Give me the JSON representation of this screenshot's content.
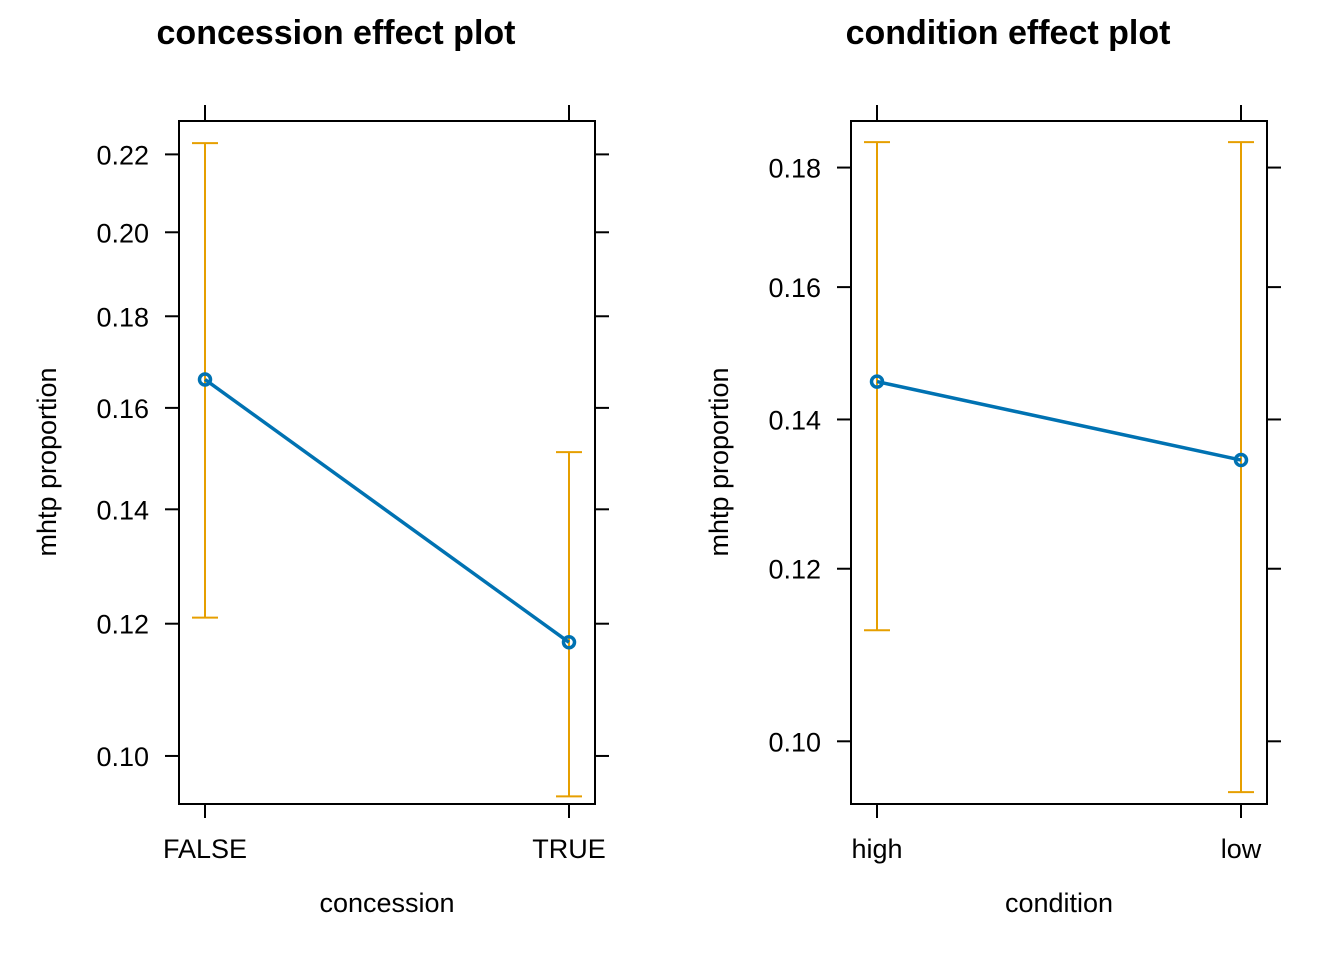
{
  "chart_data": [
    {
      "type": "line",
      "title": "concession effect plot",
      "xlabel": "concession",
      "ylabel": "mhtp proportion",
      "y_scale": "logit",
      "ylim": [
        0.0935,
        0.229
      ],
      "categories": [
        "FALSE",
        "TRUE"
      ],
      "yticks": [
        "0.10",
        "0.12",
        "0.14",
        "0.16",
        "0.18",
        "0.20",
        "0.22"
      ],
      "series": [
        {
          "values": [
            0.166,
            0.117
          ],
          "lower": [
            0.121,
            0.0945
          ],
          "upper": [
            0.223,
            0.151
          ]
        }
      ],
      "colors": {
        "line": "#0072B2",
        "error_bar": "#E69F00"
      },
      "grid": false,
      "legend": "none"
    },
    {
      "type": "line",
      "title": "condition effect plot",
      "xlabel": "condition",
      "ylabel": "mhtp proportion",
      "y_scale": "logit",
      "ylim": [
        0.0935,
        0.1883
      ],
      "categories": [
        "high",
        "low"
      ],
      "yticks": [
        "0.10",
        "0.12",
        "0.14",
        "0.16",
        "0.18"
      ],
      "series": [
        {
          "values": [
            0.1455,
            0.1343
          ],
          "lower": [
            0.1125,
            0.0947
          ],
          "upper": [
            0.1845,
            0.1845
          ]
        }
      ],
      "colors": {
        "line": "#0072B2",
        "error_bar": "#E69F00"
      },
      "grid": false,
      "legend": "none"
    }
  ]
}
